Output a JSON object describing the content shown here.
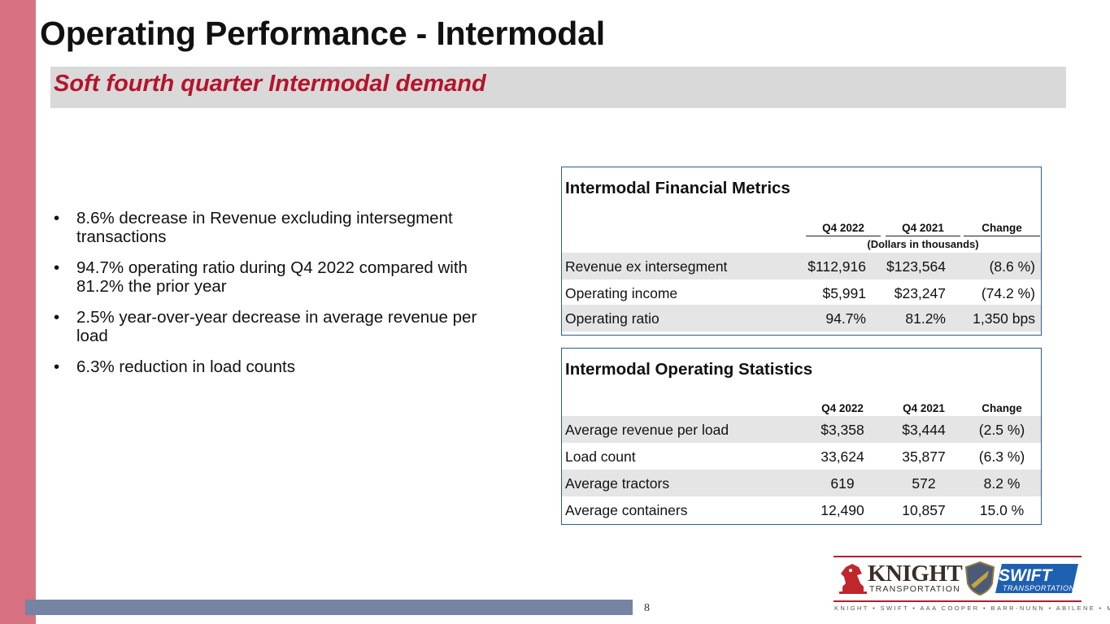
{
  "slide": {
    "title": "Operating Performance - Intermodal",
    "subtitle": "Soft fourth quarter Intermodal demand",
    "page_number": "8",
    "colors": {
      "accent_bar": "#d77080",
      "subtitle_text": "#b4142c",
      "subtitle_band": "#d9d9d9",
      "bottom_bar": "#7584a3",
      "panel_border": "#2e5a8f",
      "row_shade": "#e5e5e5"
    }
  },
  "bullets": [
    {
      "marker": "•",
      "text": "8.6% decrease in Revenue excluding intersegment transactions"
    },
    {
      "marker": "•",
      "text": "94.7% operating ratio during Q4 2022 compared with 81.2% the prior year"
    },
    {
      "marker": "•",
      "text": "2.5% year-over-year decrease in average revenue per load"
    },
    {
      "marker": "•",
      "text": "6.3% reduction in load counts"
    }
  ],
  "financial": {
    "title": "Intermodal Financial Metrics",
    "headers": [
      "Q4 2022",
      "Q4 2021",
      "Change"
    ],
    "note": "(Dollars in thousands)",
    "rows": [
      {
        "label": "Revenue ex intersegment",
        "q4_2022": "$112,916",
        "q4_2021": "$123,564",
        "change": "(8.6 %)"
      },
      {
        "label": "Operating income",
        "q4_2022": "$5,991",
        "q4_2021": "$23,247",
        "change": "(74.2 %)"
      },
      {
        "label": "Operating ratio",
        "q4_2022": "94.7%",
        "q4_2021": "81.2%",
        "change": "1,350 bps"
      }
    ]
  },
  "operating": {
    "title": "Intermodal Operating Statistics",
    "headers": [
      "Q4 2022",
      "Q4 2021",
      "Change"
    ],
    "rows": [
      {
        "label": "Average revenue per load",
        "q4_2022": "$3,358",
        "q4_2021": "$3,444",
        "change": "(2.5 %)"
      },
      {
        "label": "Load count",
        "q4_2022": "33,624",
        "q4_2021": "35,877",
        "change": "(6.3 %)"
      },
      {
        "label": "Average tractors",
        "q4_2022": "619",
        "q4_2021": "572",
        "change": "8.2 %"
      },
      {
        "label": "Average containers",
        "q4_2022": "12,490",
        "q4_2021": "10,857",
        "change": "15.0 %"
      }
    ]
  },
  "logo": {
    "knight_name": "KNIGHT",
    "knight_sub": "TRANSPORTATION",
    "swift_name": "SWIFT",
    "swift_sub": "TRANSPORTATION",
    "brands_line": "KNIGHT • SWIFT • AAA COOPER • BARR-NUNN • ABILENE • MME",
    "icons": [
      "knight-chess-icon",
      "shield-icon"
    ]
  }
}
